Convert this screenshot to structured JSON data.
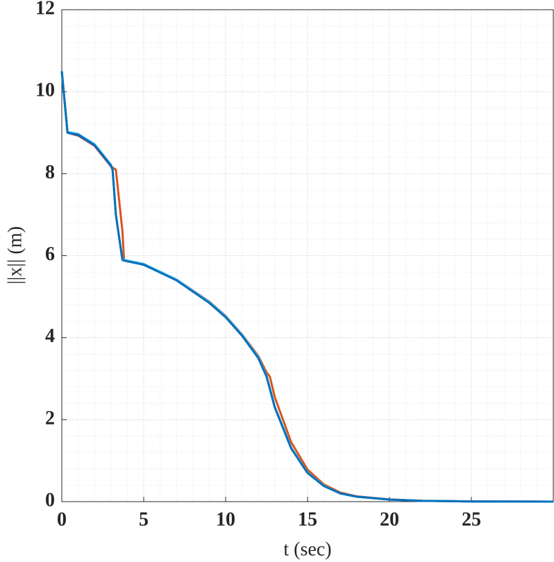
{
  "chart_data": {
    "type": "line",
    "xlabel": "t (sec)",
    "ylabel": "||x|| (m)",
    "x": [
      0,
      0.35,
      1,
      2,
      3,
      3.1,
      3.3,
      3.7,
      3.8,
      5,
      7,
      9,
      10,
      11,
      12,
      12.5,
      12.7,
      13,
      14,
      15,
      16,
      17,
      18,
      20,
      22,
      25,
      30
    ],
    "series": [
      {
        "color": "#d95319",
        "values": [
          10.5,
          9.0,
          8.93,
          8.68,
          8.18,
          8.15,
          8.1,
          6.6,
          5.9,
          5.78,
          5.42,
          4.88,
          4.53,
          4.08,
          3.55,
          3.15,
          3.05,
          2.55,
          1.45,
          0.78,
          0.42,
          0.22,
          0.13,
          0.055,
          0.022,
          0.005,
          0
        ]
      },
      {
        "color": "#7e2f8e",
        "values": [
          10.5,
          9.0,
          8.94,
          8.69,
          8.19,
          8.1,
          7.0,
          5.9,
          5.88,
          5.78,
          5.4,
          4.85,
          4.5,
          4.05,
          3.5,
          3.05,
          2.75,
          2.3,
          1.3,
          0.7,
          0.38,
          0.2,
          0.12,
          0.05,
          0.02,
          0.005,
          0
        ]
      },
      {
        "color": "#4dbeee",
        "values": [
          10.5,
          9.02,
          8.97,
          8.72,
          8.22,
          8.12,
          7.0,
          5.92,
          5.9,
          5.8,
          5.42,
          4.87,
          4.52,
          4.07,
          3.52,
          3.07,
          2.77,
          2.32,
          1.32,
          0.71,
          0.39,
          0.2,
          0.12,
          0.05,
          0.02,
          0.005,
          0
        ]
      },
      {
        "color": "#0072bd",
        "values": [
          10.5,
          9.0,
          8.95,
          8.7,
          8.2,
          8.1,
          7.0,
          5.9,
          5.88,
          5.78,
          5.4,
          4.85,
          4.5,
          4.05,
          3.5,
          3.05,
          2.75,
          2.3,
          1.3,
          0.7,
          0.38,
          0.2,
          0.12,
          0.05,
          0.02,
          0.005,
          0
        ]
      }
    ],
    "xlim": [
      0,
      30
    ],
    "xticks": [
      0,
      5,
      10,
      15,
      20,
      25
    ],
    "ylim": [
      0,
      12
    ],
    "yticks": [
      0,
      2,
      4,
      6,
      8,
      10,
      12
    ],
    "grid": true,
    "minor_grid": true
  }
}
